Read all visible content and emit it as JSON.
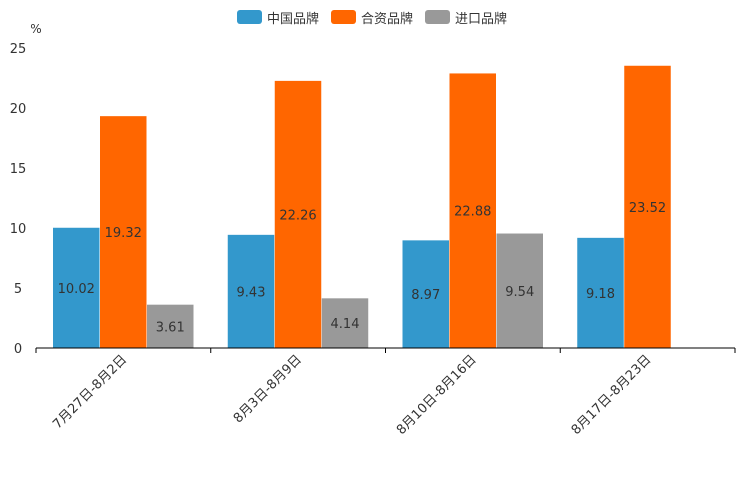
{
  "chart_data": {
    "type": "bar",
    "title": "",
    "ylabel": "%",
    "xlabel": "",
    "ylim": [
      0,
      25
    ],
    "yticks": [
      0,
      5,
      10,
      15,
      20,
      25
    ],
    "grid": false,
    "legend_position": "top-center",
    "categories": [
      "7月27日-8月2日",
      "8月3日-8月9日",
      "8月10日-8月16日",
      "8月17日-8月23日"
    ],
    "series": [
      {
        "name": "中国品牌",
        "color": "#3398cc",
        "values": [
          10.02,
          9.43,
          8.97,
          9.18
        ]
      },
      {
        "name": "合资品牌",
        "color": "#ff6600",
        "values": [
          19.32,
          22.26,
          22.88,
          23.52
        ]
      },
      {
        "name": "进口品牌",
        "color": "#999999",
        "values": [
          3.61,
          4.14,
          9.54,
          null
        ]
      }
    ]
  }
}
